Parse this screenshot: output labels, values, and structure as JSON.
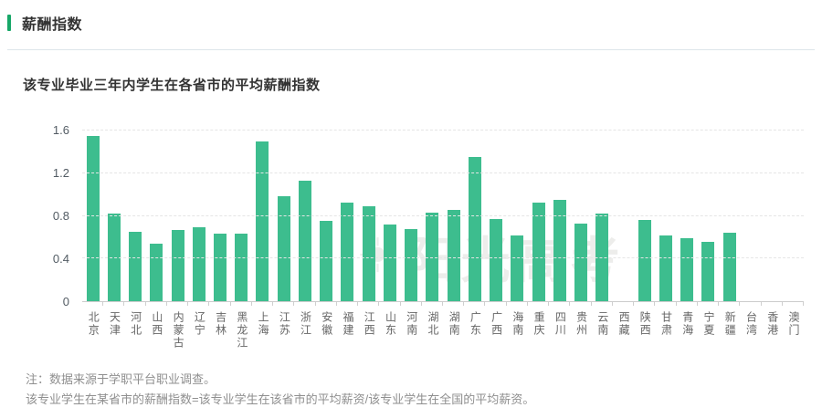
{
  "header": {
    "title": "薪酬指数",
    "accent_color": "#17a768"
  },
  "chart_data": {
    "type": "bar",
    "title": "该专业毕业三年内学生在各省市的平均薪酬指数",
    "categories": [
      "北京",
      "天津",
      "河北",
      "山西",
      "内蒙古",
      "辽宁",
      "吉林",
      "黑龙江",
      "上海",
      "江苏",
      "浙江",
      "安徽",
      "福建",
      "江西",
      "山东",
      "河南",
      "湖北",
      "湖南",
      "广东",
      "广西",
      "海南",
      "重庆",
      "四川",
      "贵州",
      "云南",
      "西藏",
      "陕西",
      "甘肃",
      "青海",
      "宁夏",
      "新疆",
      "台湾",
      "香港",
      "澳门"
    ],
    "values": [
      1.55,
      0.82,
      0.65,
      0.54,
      0.67,
      0.69,
      0.63,
      0.63,
      1.5,
      0.98,
      1.13,
      0.75,
      0.92,
      0.89,
      0.72,
      0.68,
      0.83,
      0.86,
      1.35,
      0.77,
      0.62,
      0.92,
      0.95,
      0.73,
      0.82,
      0,
      0.76,
      0.62,
      0.59,
      0.56,
      0.64,
      0,
      0,
      0
    ],
    "xlabel": "",
    "ylabel": "",
    "ylim": [
      0,
      1.6
    ],
    "yticks": [
      0,
      0.4,
      1.2,
      0.8,
      1.6
    ],
    "ytick_labels": [
      "0",
      "0.4",
      "1.2",
      "0.8",
      "1.6"
    ],
    "grid": "horizontal-dashed",
    "legend": "none",
    "bar_color": "#3dbd8e",
    "watermark": "阳光高考"
  },
  "notes": {
    "line1": "注：数据来源于学职平台职业调查。",
    "line2": "该专业学生在某省市的薪酬指数=该专业学生在该省市的平均薪资/该专业学生在全国的平均薪资。"
  }
}
